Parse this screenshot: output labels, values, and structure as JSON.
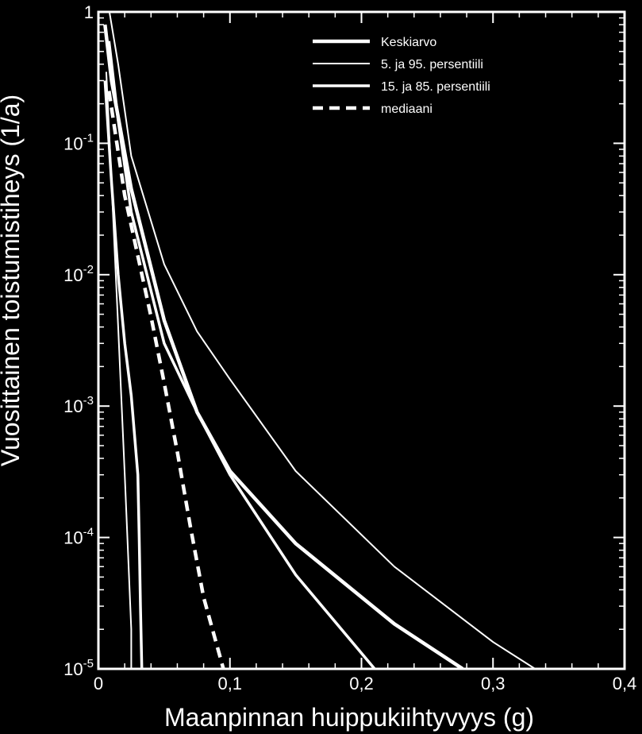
{
  "chart_data": {
    "type": "line",
    "title": "",
    "xlabel": "Maanpinnan huippukiihtyvyys (g)",
    "ylabel": "Vuosittainen toistumistiheys (1/a)",
    "xscale": "linear",
    "yscale": "log",
    "xlim": [
      0,
      0.4
    ],
    "ylim": [
      1e-05,
      1
    ],
    "x_tick_labels": [
      "0",
      "0,1",
      "0,2",
      "0,3",
      "0,4"
    ],
    "y_ticks": [
      {
        "base": "1",
        "exp": ""
      },
      {
        "base": "10",
        "exp": "-1"
      },
      {
        "base": "10",
        "exp": "-2"
      },
      {
        "base": "10",
        "exp": "-3"
      },
      {
        "base": "10",
        "exp": "-4"
      },
      {
        "base": "10",
        "exp": "-5"
      }
    ],
    "legend_position": "top-right",
    "series": [
      {
        "name": "5. ja 95. persentiili",
        "style": "thin",
        "points": [
          [
            0.0084,
            1
          ],
          [
            0.015,
            0.4
          ],
          [
            0.025,
            0.08
          ],
          [
            0.05,
            0.012
          ],
          [
            0.075,
            0.0037
          ],
          [
            0.1,
            0.0016
          ],
          [
            0.15,
            0.00032
          ],
          [
            0.225,
            6e-05
          ],
          [
            0.3,
            1.6e-05
          ],
          [
            0.332,
            1e-05
          ]
        ]
      },
      {
        "name": "5. ja 95. persentiili",
        "style": "thin",
        "points": [
          [
            0.006,
            0.35
          ],
          [
            0.01,
            0.05
          ],
          [
            0.015,
            0.004
          ],
          [
            0.02,
            0.0003
          ],
          [
            0.025,
            2e-05
          ],
          [
            0.025,
            1e-05
          ]
        ]
      },
      {
        "name": "Keskiarvo",
        "style": "thick",
        "points": [
          [
            0.005,
            0.8
          ],
          [
            0.01,
            0.3
          ],
          [
            0.025,
            0.045
          ],
          [
            0.05,
            0.0045
          ],
          [
            0.075,
            0.0009
          ],
          [
            0.1,
            0.00032
          ],
          [
            0.15,
            9e-05
          ],
          [
            0.225,
            2.2e-05
          ],
          [
            0.277,
            1e-05
          ]
        ]
      },
      {
        "name": "15. ja 85. persentiili",
        "style": "medium",
        "points": [
          [
            0.008,
            0.6
          ],
          [
            0.015,
            0.15
          ],
          [
            0.025,
            0.03
          ],
          [
            0.05,
            0.003
          ],
          [
            0.075,
            0.0009
          ],
          [
            0.1,
            0.0003
          ],
          [
            0.15,
            5.2e-05
          ],
          [
            0.21,
            1e-05
          ]
        ]
      },
      {
        "name": "15. ja 85. persentiili",
        "style": "medium",
        "points": [
          [
            0.005,
            0.3
          ],
          [
            0.01,
            0.05
          ],
          [
            0.015,
            0.01
          ],
          [
            0.02,
            0.003
          ],
          [
            0.025,
            0.0012
          ],
          [
            0.03,
            0.0003
          ],
          [
            0.031,
            0.0001
          ],
          [
            0.032,
            3e-05
          ],
          [
            0.033,
            1e-05
          ]
        ]
      },
      {
        "name": "mediaani",
        "style": "dashed",
        "points": [
          [
            0.008,
            0.25
          ],
          [
            0.02,
            0.04
          ],
          [
            0.04,
            0.0048
          ],
          [
            0.05,
            0.0015
          ],
          [
            0.06,
            0.00045
          ],
          [
            0.07,
            0.00012
          ],
          [
            0.08,
            3.5e-05
          ],
          [
            0.095,
            1e-05
          ]
        ]
      }
    ],
    "legend": [
      {
        "label": "Keskiarvo",
        "style": "thick"
      },
      {
        "label": "5. ja 95. persentiili",
        "style": "thin"
      },
      {
        "label": "15. ja 85. persentiili",
        "style": "medium"
      },
      {
        "label": "mediaani",
        "style": "dashed"
      }
    ]
  }
}
